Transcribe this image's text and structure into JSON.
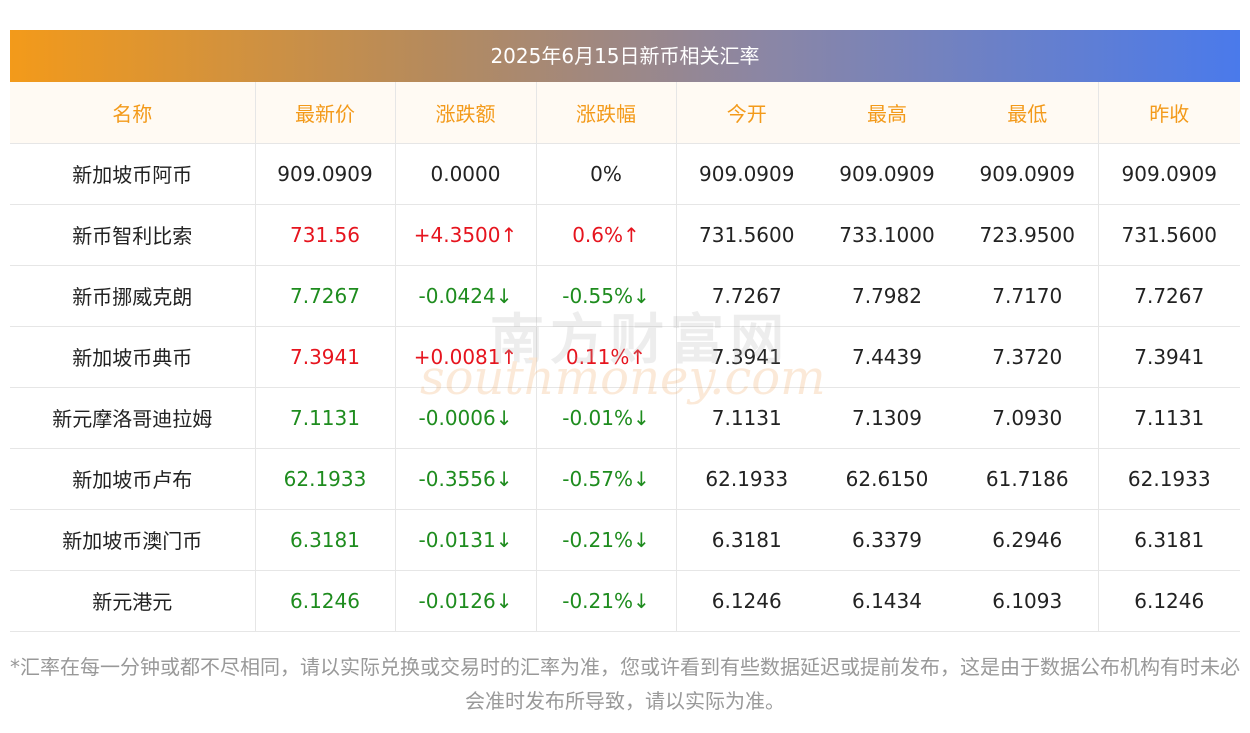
{
  "title": "2025年6月15日新币相关汇率",
  "columns": [
    "名称",
    "最新价",
    "涨跌额",
    "涨跌幅",
    "今开",
    "最高",
    "最低",
    "昨收"
  ],
  "rows": [
    {
      "trend": "flat",
      "cells": [
        "新加坡币阿币",
        "909.0909",
        "0.0000",
        "0%",
        "909.0909",
        "909.0909",
        "909.0909",
        "909.0909"
      ]
    },
    {
      "trend": "up",
      "cells": [
        "新币智利比索",
        "731.56",
        "+4.3500↑",
        "0.6%↑",
        "731.5600",
        "733.1000",
        "723.9500",
        "731.5600"
      ]
    },
    {
      "trend": "down",
      "cells": [
        "新币挪威克朗",
        "7.7267",
        "-0.0424↓",
        "-0.55%↓",
        "7.7267",
        "7.7982",
        "7.7170",
        "7.7267"
      ]
    },
    {
      "trend": "up",
      "cells": [
        "新加坡币典币",
        "7.3941",
        "+0.0081↑",
        "0.11%↑",
        "7.3941",
        "7.4439",
        "7.3720",
        "7.3941"
      ]
    },
    {
      "trend": "down",
      "cells": [
        "新元摩洛哥迪拉姆",
        "7.1131",
        "-0.0006↓",
        "-0.01%↓",
        "7.1131",
        "7.1309",
        "7.0930",
        "7.1131"
      ]
    },
    {
      "trend": "down",
      "cells": [
        "新加坡币卢布",
        "62.1933",
        "-0.3556↓",
        "-0.57%↓",
        "62.1933",
        "62.6150",
        "61.7186",
        "62.1933"
      ]
    },
    {
      "trend": "down",
      "cells": [
        "新加坡币澳门币",
        "6.3181",
        "-0.0131↓",
        "-0.21%↓",
        "6.3181",
        "6.3379",
        "6.2946",
        "6.3181"
      ]
    },
    {
      "trend": "down",
      "cells": [
        "新元港元",
        "6.1246",
        "-0.0126↓",
        "-0.21%↓",
        "6.1246",
        "6.1434",
        "6.1093",
        "6.1246"
      ]
    }
  ],
  "note": "*汇率在每一分钟或都不尽相同，请以实际兑换或交易时的汇率为准，您或许看到有些数据延迟或提前发布，这是由于数据公布机构有时未必会准时发布所导致，请以实际为准。",
  "watermark": {
    "cn": "南方财富网",
    "en": "southmoney.com"
  },
  "colors": {
    "up": "#e6141e",
    "down": "#1e8c1e",
    "header_text": "#f39a1a",
    "gradient_start": "#f39a1a",
    "gradient_end": "#4a7aeb"
  }
}
